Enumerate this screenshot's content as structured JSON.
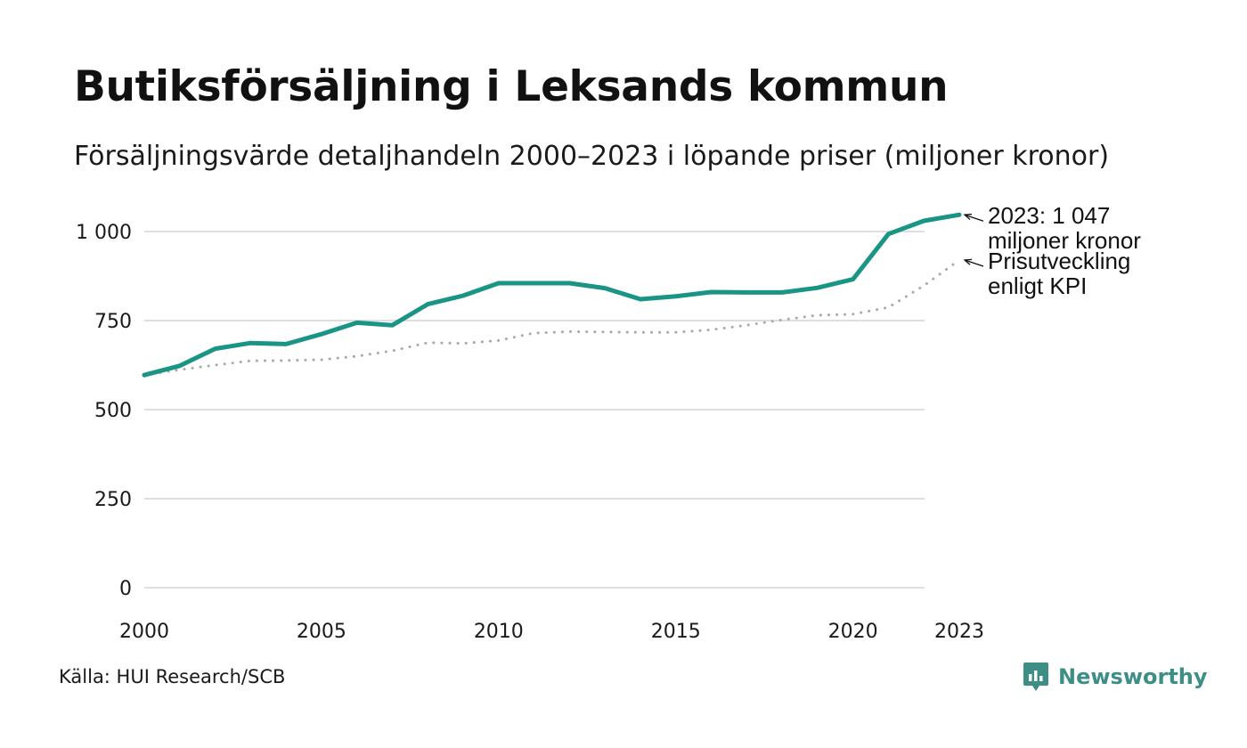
{
  "title": "Butiksförsäljning i Leksands kommun",
  "subtitle": "Försäljningsvärde detaljhandeln 2000–2023 i löpande priser (miljoner kronor)",
  "source": "Källa: HUI Research/SCB",
  "brand": {
    "name": "Newsworthy",
    "icon": "newsworthy-logo-icon",
    "color": "#3d8f86"
  },
  "chart_data": {
    "type": "line",
    "title": "Butiksförsäljning i Leksands kommun",
    "xlabel": "",
    "ylabel": "",
    "xlim": [
      2000,
      2023
    ],
    "ylim": [
      0,
      1000
    ],
    "grid": true,
    "x": [
      2000,
      2001,
      2002,
      2003,
      2004,
      2005,
      2006,
      2007,
      2008,
      2009,
      2010,
      2011,
      2012,
      2013,
      2014,
      2015,
      2016,
      2017,
      2018,
      2019,
      2020,
      2021,
      2022,
      2023
    ],
    "x_ticks": [
      "2000",
      "2005",
      "2010",
      "2015",
      "2020",
      "2023"
    ],
    "x_tick_values": [
      2000,
      2005,
      2010,
      2015,
      2020,
      2023
    ],
    "y_ticks": [
      "0",
      "250",
      "500",
      "750",
      "1 000"
    ],
    "y_tick_values": [
      0,
      250,
      500,
      750,
      1000
    ],
    "series": [
      {
        "name": "Försäljningsvärde",
        "style": "solid",
        "color": "#1a9485",
        "values": [
          597,
          623,
          671,
          687,
          684,
          712,
          744,
          737,
          796,
          820,
          855,
          855,
          855,
          841,
          810,
          818,
          830,
          829,
          829,
          842,
          866,
          993,
          1030,
          1047
        ]
      },
      {
        "name": "Prisutveckling enligt KPI",
        "style": "dotted",
        "color": "#a9a9a9",
        "values": [
          597,
          612,
          625,
          637,
          638,
          640,
          650,
          665,
          688,
          686,
          694,
          715,
          719,
          718,
          717,
          717,
          724,
          737,
          752,
          765,
          768,
          787,
          848,
          920
        ]
      }
    ],
    "annotations": [
      {
        "series": 0,
        "lines": [
          "2023: 1 047",
          "miljoner kronor"
        ]
      },
      {
        "series": 1,
        "lines": [
          "Prisutveckling",
          "enligt KPI"
        ]
      }
    ]
  }
}
